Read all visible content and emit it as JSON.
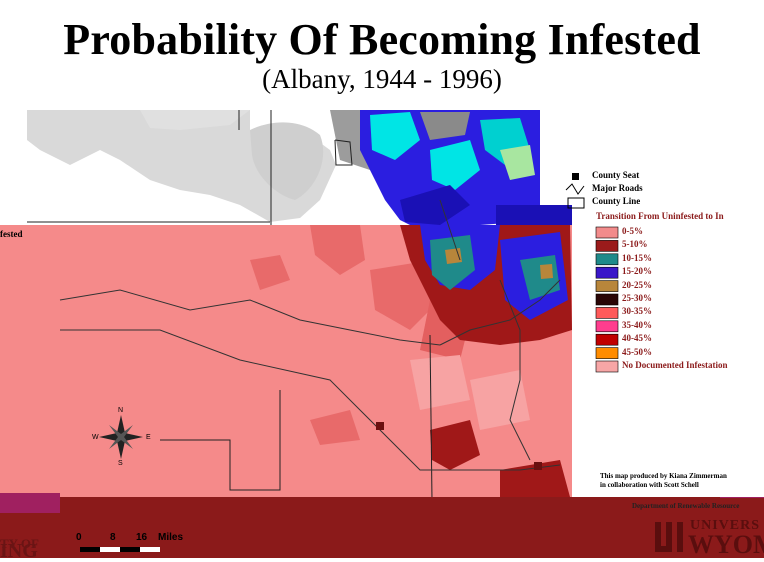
{
  "title": "Probability Of Becoming Infested",
  "subtitle": "(Albany, 1944 - 1996)",
  "map_legend": {
    "county_seat": "County Seat",
    "major_roads": "Major Roads",
    "county_line": "County Line",
    "transition_heading": "Transition From Uninfested to In",
    "classes": [
      {
        "label": "0-5%",
        "color": "#f28b8b"
      },
      {
        "label": "5-10%",
        "color": "#9b1b1b"
      },
      {
        "label": "10-15%",
        "color": "#1f8a8a"
      },
      {
        "label": "15-20%",
        "color": "#3a17c9"
      },
      {
        "label": "20-25%",
        "color": "#b8863b"
      },
      {
        "label": "25-30%",
        "color": "#2a0606"
      },
      {
        "label": "30-35%",
        "color": "#ff5a5a"
      },
      {
        "label": "35-40%",
        "color": "#ff3d8e"
      },
      {
        "label": "40-45%",
        "color": "#c00000"
      },
      {
        "label": "45-50%",
        "color": "#ff8c00"
      },
      {
        "label": "No Documented Infestation",
        "color": "#f7a6a6"
      }
    ]
  },
  "side_label": "fested",
  "compass": {
    "n": "N",
    "s": "S",
    "e": "E",
    "w": "W"
  },
  "scale": {
    "zero": "0",
    "mid": "8",
    "max": "16",
    "unit": "Miles"
  },
  "credits": {
    "line1": "This map produced by Kiana Zimmerman",
    "line2": "in collaboration with Scott Schell",
    "line3": "Department of Renewable Resource"
  },
  "university": {
    "left_fragment_top": "TY OF",
    "left_fragment_bottom": "ING",
    "right_top": "UNIVERS",
    "right_bottom": "WYOM"
  },
  "colors": {
    "background_map": "#f58a8a",
    "dark_red": "#8b1a1a",
    "grey_top": "#d3d3d3"
  }
}
